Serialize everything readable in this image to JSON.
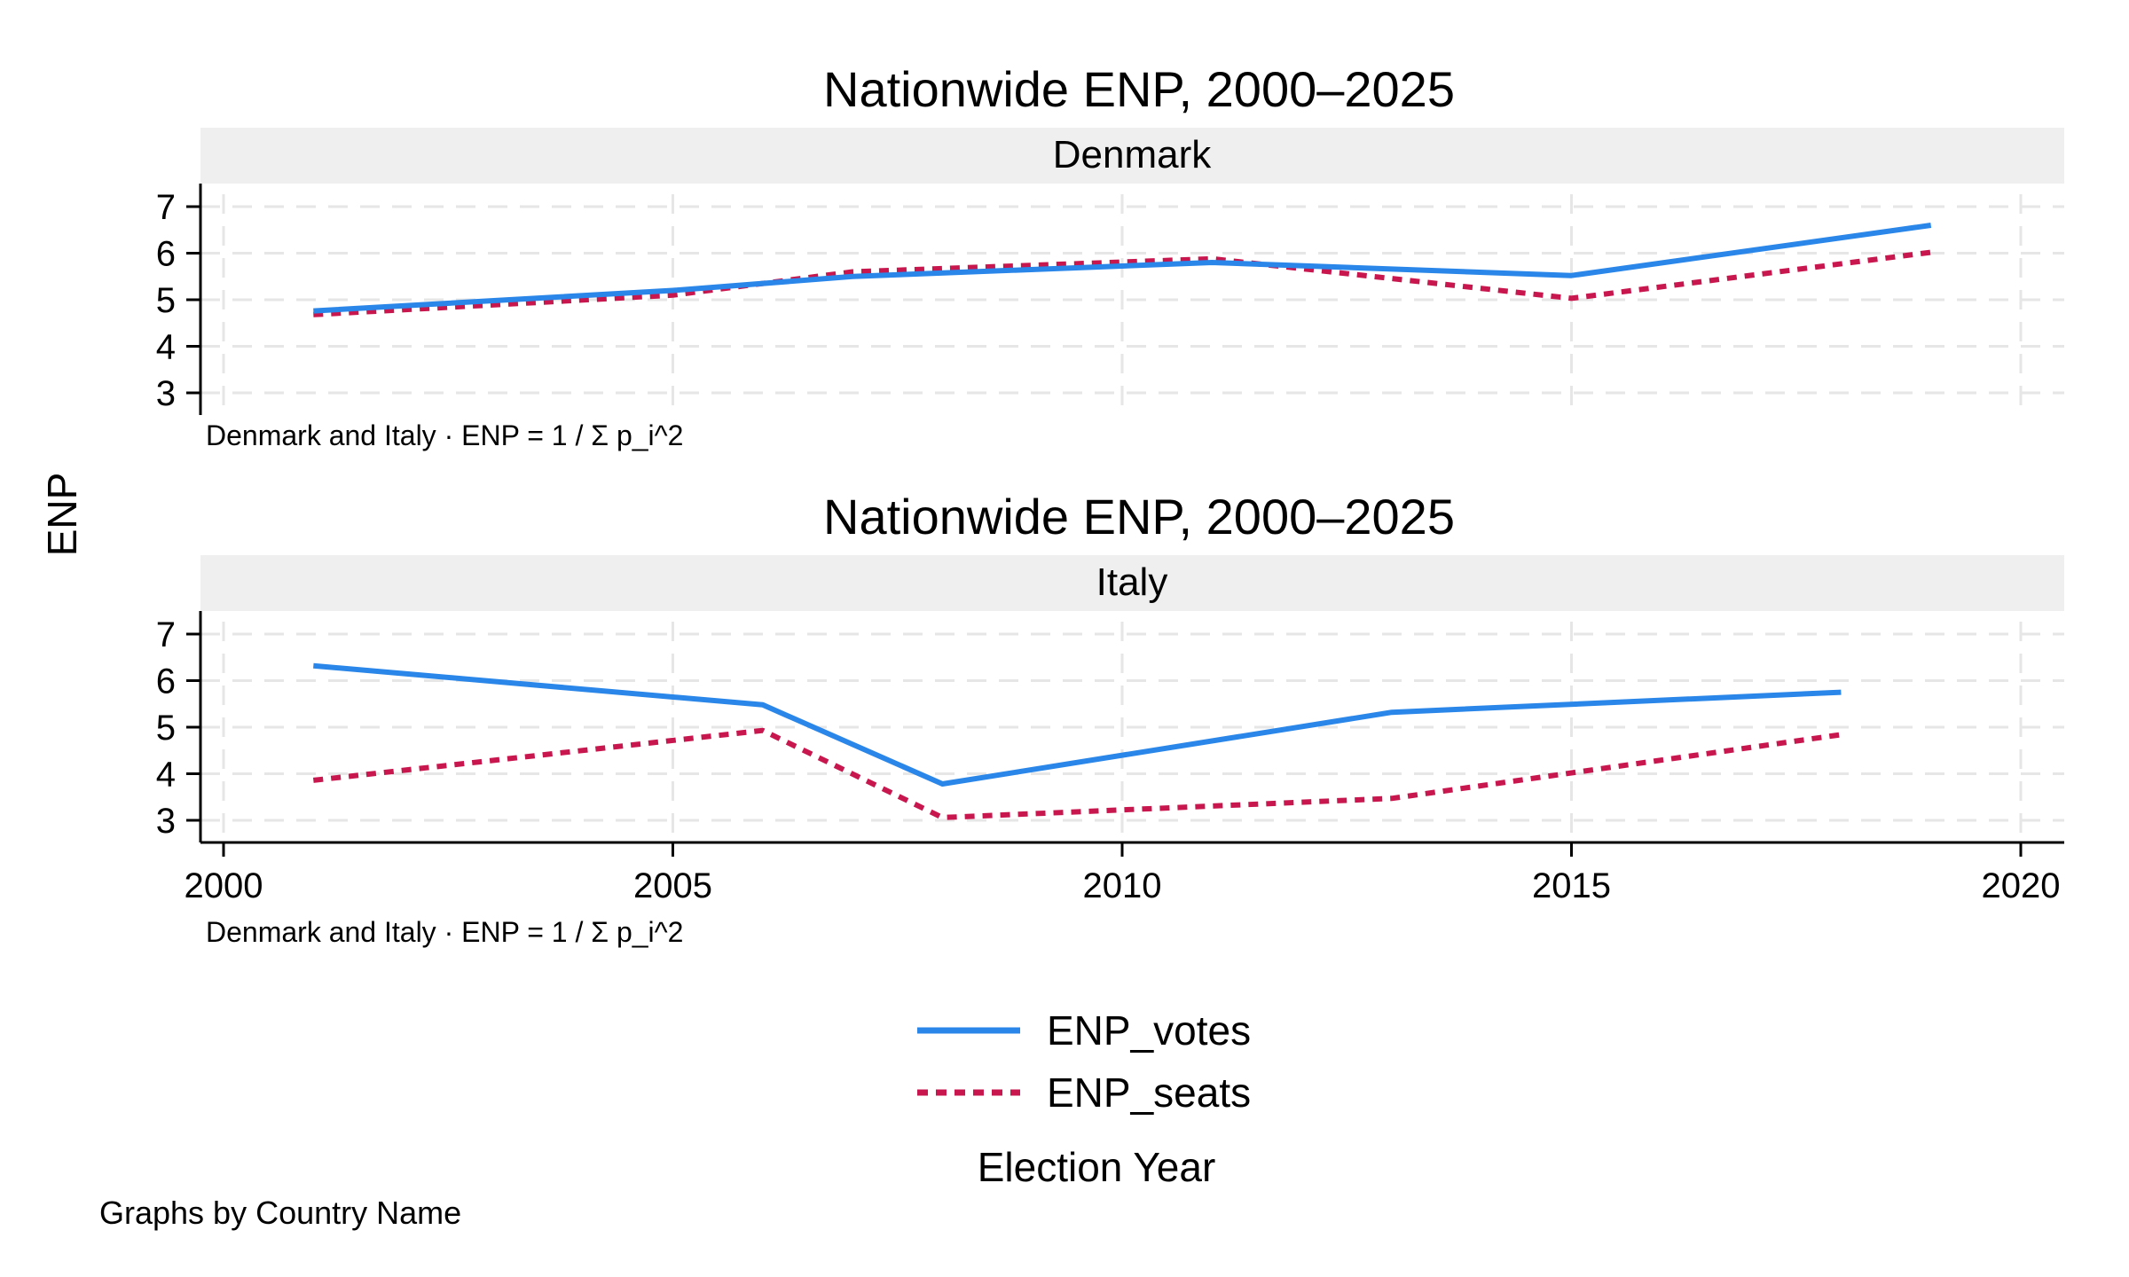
{
  "chart_data": {
    "type": "line",
    "ylabel": "ENP",
    "xlabel": "Election Year",
    "note": "Graphs by Country Name",
    "xticks": [
      2000,
      2005,
      2010,
      2015,
      2020
    ],
    "xlim": [
      2000,
      2020
    ],
    "yticks": [
      3,
      4,
      5,
      6,
      7
    ],
    "ylim": [
      2.5,
      7.5
    ],
    "grid": true,
    "legend_position": "bottom-center",
    "series_styles": [
      {
        "name": "ENP_votes",
        "color": "#2a86e8",
        "dash": "solid"
      },
      {
        "name": "ENP_seats",
        "color": "#c8174f",
        "dash": "dotted"
      }
    ],
    "panels": [
      {
        "title": "Nationwide ENP, 2000–2025",
        "strip": "Denmark",
        "caption": "Denmark and Italy · ENP = 1 / Σ p_i^2",
        "series": [
          {
            "name": "ENP_votes",
            "x": [
              2001,
              2005,
              2007,
              2011,
              2015,
              2019
            ],
            "values": [
              4.76,
              5.2,
              5.5,
              5.8,
              5.52,
              6.6
            ]
          },
          {
            "name": "ENP_seats",
            "x": [
              2001,
              2005,
              2007,
              2011,
              2015,
              2019
            ],
            "values": [
              4.68,
              5.1,
              5.6,
              5.88,
              5.03,
              6.02
            ]
          }
        ]
      },
      {
        "title": "Nationwide ENP, 2000–2025",
        "strip": "Italy",
        "caption": "Denmark and Italy · ENP = 1 / Σ p_i^2",
        "series": [
          {
            "name": "ENP_votes",
            "x": [
              2001,
              2006,
              2008,
              2013,
              2018
            ],
            "values": [
              6.32,
              5.48,
              3.78,
              5.32,
              5.75
            ]
          },
          {
            "name": "ENP_seats",
            "x": [
              2001,
              2006,
              2008,
              2013,
              2018
            ],
            "values": [
              3.86,
              4.93,
              3.06,
              3.47,
              4.84
            ]
          }
        ]
      }
    ]
  }
}
